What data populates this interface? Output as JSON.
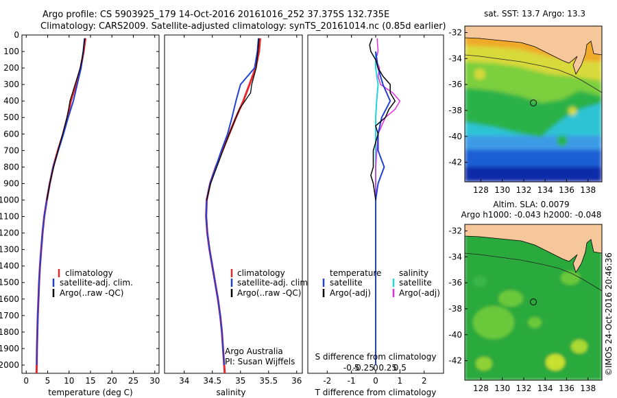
{
  "title_line1": "Argo profile: CS 5903925_179 14-Oct-2016 20161016_252 37.375S 132.735E",
  "title_line2": "Climatology: CARS2009. Satellite-adjusted climatology: synTS_20161014.nc (0.85d earlier)",
  "footer": {
    "org": "Argo Australia",
    "pi": "PI: Susan Wijffels",
    "stamp": "©IMOS 24-Oct-2016 20:46:36"
  },
  "colors": {
    "climatology": "#e8262b",
    "satellite": "#1f3fd6",
    "argo": "#000000",
    "sal_satellite": "#22d3e0",
    "sal_argo": "#e22ce0",
    "land": "#f6c79a"
  },
  "chart_data": [
    {
      "type": "line",
      "xlabel": "temperature (deg C)",
      "xlim": [
        -1,
        31
      ],
      "xticks": [
        "0",
        "5",
        "10",
        "15",
        "20",
        "25",
        "30"
      ],
      "ylim": [
        0,
        2050
      ],
      "yticks": [
        "0",
        "100",
        "200",
        "300",
        "400",
        "500",
        "600",
        "700",
        "800",
        "900",
        "1000",
        "1100",
        "1200",
        "1300",
        "1400",
        "1500",
        "1600",
        "1700",
        "1800",
        "1900",
        "2000"
      ],
      "legend": [
        "climatology",
        "satellite-adj. clim.",
        "Argo(..raw -QC)"
      ],
      "series": [
        {
          "name": "climatology",
          "depth": [
            20,
            100,
            200,
            300,
            400,
            500,
            600,
            700,
            800,
            900,
            1000,
            1100,
            1200,
            1300,
            1400,
            1500,
            1600,
            1700,
            1800,
            1900,
            2000,
            2050
          ],
          "values": [
            13.8,
            13.4,
            12.7,
            11.6,
            10.4,
            9.6,
            8.6,
            7.4,
            6.3,
            5.5,
            4.8,
            4.2,
            3.8,
            3.5,
            3.2,
            3.0,
            2.85,
            2.7,
            2.6,
            2.5,
            2.45,
            2.4
          ]
        },
        {
          "name": "satellite-adj. clim.",
          "depth": [
            20,
            100,
            200,
            300,
            400,
            500,
            600,
            700,
            800,
            900,
            1000,
            1100,
            1200,
            1300,
            1400,
            1500,
            1600,
            1700,
            1800,
            1900,
            2000
          ],
          "values": [
            13.6,
            13.3,
            12.8,
            11.9,
            11.0,
            9.8,
            8.7,
            7.5,
            6.3,
            5.5,
            4.8,
            4.2,
            3.8,
            3.5,
            3.2,
            3.0,
            2.85,
            2.7,
            2.6,
            2.5,
            2.45
          ]
        },
        {
          "name": "Argo(..raw -QC)",
          "depth": [
            20,
            50,
            100,
            150,
            200,
            250,
            300,
            350,
            400,
            450,
            500,
            550,
            600,
            700,
            800,
            900,
            1000
          ],
          "values": [
            13.7,
            13.5,
            13.3,
            13.0,
            12.6,
            12.0,
            11.4,
            10.8,
            10.2,
            9.9,
            9.5,
            9.0,
            8.5,
            7.4,
            6.4,
            5.5,
            4.8
          ]
        }
      ]
    },
    {
      "type": "line",
      "xlabel": "salinity",
      "xlim": [
        33.65,
        36.1
      ],
      "xticks": [
        "34",
        "34.5",
        "35",
        "35.5",
        "36"
      ],
      "ylim": [
        0,
        2050
      ],
      "legend": [
        "climatology",
        "satellite-adj. clim.",
        "Argo(..raw -QC)"
      ],
      "series": [
        {
          "name": "climatology",
          "depth": [
            20,
            100,
            200,
            300,
            400,
            500,
            600,
            700,
            800,
            900,
            1000,
            1100,
            1200,
            1300,
            1400,
            1500,
            1600,
            1700,
            1800,
            1900,
            2000,
            2050
          ],
          "values": [
            35.35,
            35.33,
            35.27,
            35.16,
            35.05,
            34.92,
            34.8,
            34.68,
            34.56,
            34.46,
            34.4,
            34.39,
            34.41,
            34.45,
            34.5,
            34.55,
            34.6,
            34.64,
            34.67,
            34.69,
            34.71,
            34.72
          ]
        },
        {
          "name": "satellite-adj. clim.",
          "depth": [
            20,
            100,
            200,
            300,
            400,
            500,
            600,
            700,
            800,
            900,
            1000,
            1100,
            1200,
            1300,
            1400,
            1500,
            1600,
            1700,
            1800,
            1900,
            2000
          ],
          "values": [
            35.32,
            35.3,
            35.25,
            35.0,
            34.92,
            34.85,
            34.77,
            34.66,
            34.56,
            34.46,
            34.4,
            34.39,
            34.41,
            34.45,
            34.5,
            34.55,
            34.6,
            34.64,
            34.67,
            34.69,
            34.71
          ]
        },
        {
          "name": "Argo(..raw -QC)",
          "depth": [
            20,
            100,
            200,
            300,
            350,
            400,
            450,
            500,
            550,
            600,
            700,
            800,
            900,
            1000
          ],
          "values": [
            35.33,
            35.31,
            35.28,
            35.2,
            35.18,
            35.08,
            34.98,
            34.92,
            34.86,
            34.8,
            34.69,
            34.58,
            34.47,
            34.4
          ]
        }
      ]
    },
    {
      "type": "line",
      "xlabel": "T difference from climatology",
      "xlabel_top": "S difference from climatology",
      "xlim": [
        -2.8,
        2.8
      ],
      "xticks": [
        "-2",
        "-1",
        "0",
        "1",
        "2"
      ],
      "xticks_top": [
        "-0.5",
        "-0.25",
        "0",
        "0.25",
        "0.5"
      ],
      "ylim": [
        0,
        2050
      ],
      "legend_temperature": {
        "title": "temperature",
        "items": [
          "satellite",
          "Argo(-adj)"
        ]
      },
      "legend_salinity": {
        "title": "salinity",
        "items": [
          "satellite",
          "Argo(-adj)"
        ]
      },
      "series": [
        {
          "name": "temperature satellite",
          "depth": [
            100,
            200,
            300,
            400,
            500,
            600,
            700,
            800,
            900,
            1000,
            1100,
            1200,
            1300,
            1400,
            1600,
            2000
          ],
          "values": [
            0.0,
            0.1,
            0.3,
            0.6,
            0.25,
            0.1,
            0.1,
            0.35,
            0.1,
            0.0,
            0.0,
            0.0,
            0.0,
            0.0,
            0.0,
            0.0
          ]
        },
        {
          "name": "temperature Argo(-adj)",
          "depth": [
            20,
            60,
            100,
            150,
            200,
            250,
            300,
            350,
            400,
            450,
            500,
            550,
            600,
            700,
            800,
            850,
            900,
            1000
          ],
          "values": [
            -0.15,
            -0.25,
            -0.2,
            0.0,
            0.1,
            0.3,
            0.6,
            0.6,
            0.8,
            0.55,
            0.4,
            0.0,
            0.1,
            -0.1,
            -0.1,
            -0.2,
            -0.1,
            0.0
          ]
        },
        {
          "name": "salinity satellite",
          "depth": [
            100,
            200,
            300,
            400,
            500,
            600,
            700,
            800,
            1000,
            1500,
            2000
          ],
          "values": [
            0.0,
            0.0,
            0.05,
            0.02,
            0.0,
            0.0,
            0.0,
            0.0,
            0.0,
            0.0,
            0.0
          ]
        },
        {
          "name": "salinity Argo(-adj)",
          "depth": [
            20,
            100,
            150,
            200,
            250,
            300,
            350,
            400,
            450,
            500,
            600,
            800,
            1000
          ],
          "values": [
            0.03,
            0.05,
            0.0,
            0.08,
            0.05,
            0.1,
            0.35,
            0.5,
            0.4,
            0.2,
            0.05,
            0.0,
            0.0
          ]
        }
      ]
    }
  ],
  "maps": [
    {
      "title": "sat. SST: 13.7 Argo: 13.3",
      "yticks": [
        "-32",
        "-34",
        "-36",
        "-38",
        "-40",
        "-42"
      ],
      "xticks": [
        "128",
        "130",
        "132",
        "134",
        "136",
        "138"
      ]
    },
    {
      "title_line1": "Altim. SLA: 0.0079",
      "title_line2": "Argo h1000: -0.043 h2000: -0.048",
      "yticks": [
        "-32",
        "-34",
        "-36",
        "-38",
        "-40",
        "-42"
      ],
      "xticks": [
        "128",
        "130",
        "132",
        "134",
        "136",
        "138"
      ]
    }
  ]
}
